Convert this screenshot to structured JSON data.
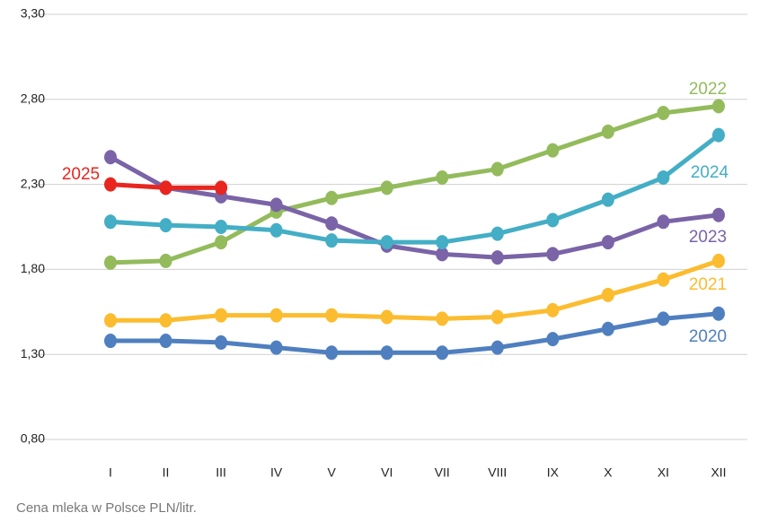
{
  "chart_data": {
    "type": "line",
    "caption": "Cena mleka w Polsce PLN/litr.",
    "categories": [
      "I",
      "II",
      "III",
      "IV",
      "V",
      "VI",
      "VII",
      "VIII",
      "IX",
      "X",
      "XI",
      "XII"
    ],
    "ylim": [
      0.8,
      3.3
    ],
    "yticks": [
      {
        "value": 0.8,
        "label": "0,80"
      },
      {
        "value": 1.3,
        "label": "1,30"
      },
      {
        "value": 1.8,
        "label": "1,80"
      },
      {
        "value": 2.3,
        "label": "2,30"
      },
      {
        "value": 2.8,
        "label": "2,80"
      },
      {
        "value": 3.3,
        "label": "3,30"
      }
    ],
    "grid": true,
    "series": [
      {
        "name": "2020",
        "color": "#4f7fbf",
        "values": [
          1.38,
          1.38,
          1.37,
          1.34,
          1.31,
          1.31,
          1.31,
          1.34,
          1.39,
          1.45,
          1.51,
          1.54
        ]
      },
      {
        "name": "2021",
        "color": "#fbbc2f",
        "values": [
          1.5,
          1.5,
          1.53,
          1.53,
          1.53,
          1.52,
          1.51,
          1.52,
          1.56,
          1.65,
          1.74,
          1.85
        ]
      },
      {
        "name": "2022",
        "color": "#93bb5c",
        "values": [
          1.84,
          1.85,
          1.96,
          2.14,
          2.22,
          2.28,
          2.34,
          2.39,
          2.5,
          2.61,
          2.72,
          2.76
        ]
      },
      {
        "name": "2023",
        "color": "#7a63a6",
        "values": [
          2.46,
          2.28,
          2.23,
          2.18,
          2.07,
          1.94,
          1.89,
          1.87,
          1.89,
          1.96,
          2.08,
          2.12
        ]
      },
      {
        "name": "2024",
        "color": "#43aec5",
        "values": [
          2.08,
          2.06,
          2.05,
          2.03,
          1.97,
          1.96,
          1.96,
          2.01,
          2.09,
          2.21,
          2.34,
          2.59
        ]
      },
      {
        "name": "2025",
        "color": "#e8261f",
        "values": [
          2.3,
          2.28,
          2.28,
          null,
          null,
          null,
          null,
          null,
          null,
          null,
          null,
          null
        ]
      }
    ]
  }
}
